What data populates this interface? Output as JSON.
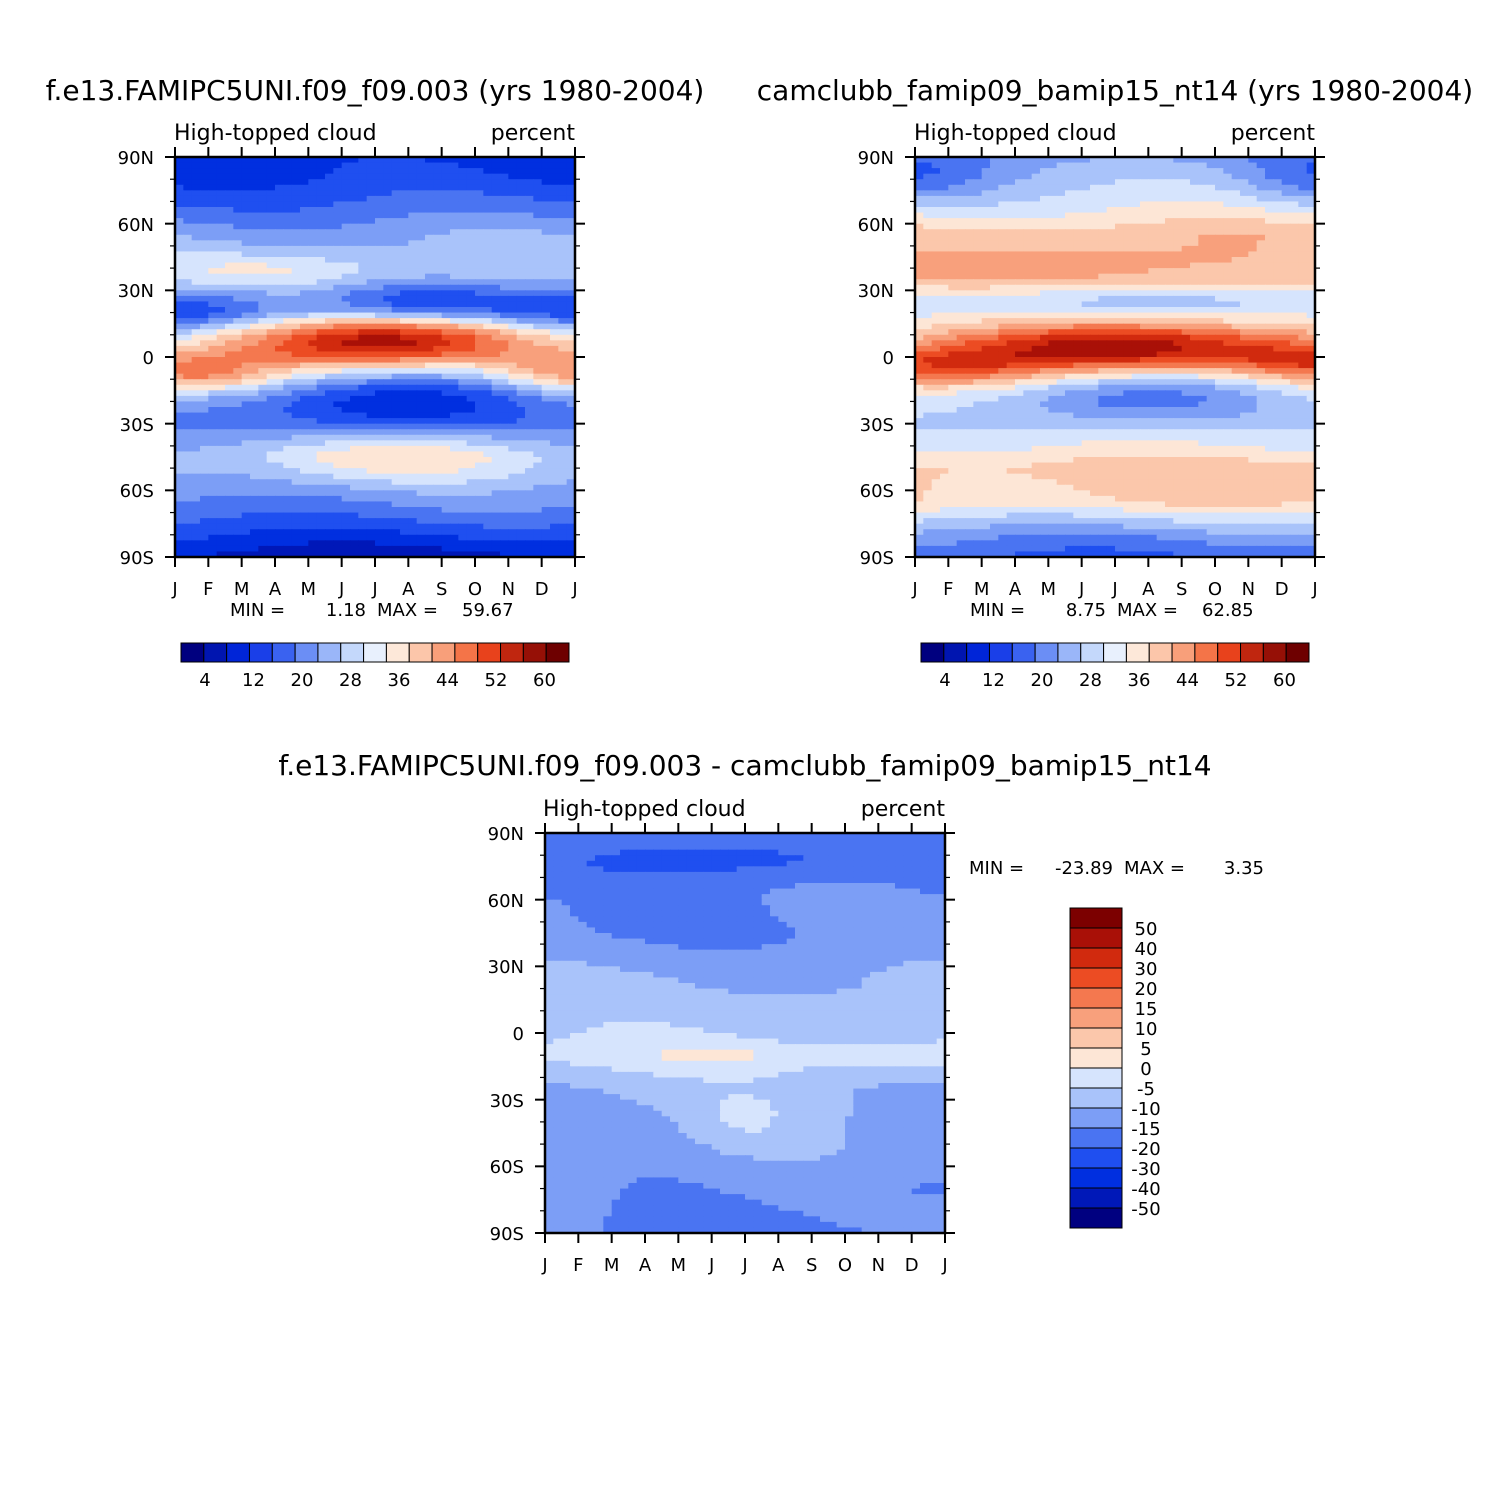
{
  "chart_data": [
    {
      "type": "heatmap",
      "title": "f.e13.FAMIPC5UNI.f09_f09.003 (yrs 1980-2004)",
      "subtitle_left": "High-topped cloud",
      "subtitle_right": "percent",
      "x_ticks": [
        "J",
        "F",
        "M",
        "A",
        "M",
        "J",
        "J",
        "A",
        "S",
        "O",
        "N",
        "D",
        "J"
      ],
      "y_ticks": [
        "90N",
        "60N",
        "30N",
        "0",
        "30S",
        "60S",
        "90S"
      ],
      "min_label": "MIN =",
      "min_value": "1.18",
      "max_label": "MAX =",
      "max_value": "59.67",
      "colorbar_ticks": [
        "4",
        "12",
        "20",
        "28",
        "36",
        "44",
        "52",
        "60"
      ],
      "zrange": [
        0,
        64
      ],
      "features": [
        {
          "lat": 8,
          "month": 6.5,
          "amp": 28,
          "slat": 8,
          "smon": 3.2
        },
        {
          "lat": -8,
          "month": 0.5,
          "amp": 16,
          "slat": 6,
          "smon": 1.8
        },
        {
          "lat": -8,
          "month": 11.8,
          "amp": 14,
          "slat": 6,
          "smon": 1.6
        },
        {
          "lat": -20,
          "month": 6.5,
          "amp": -17,
          "slat": 10,
          "smon": 3
        },
        {
          "lat": 20,
          "month": 0.5,
          "amp": -12,
          "slat": 8,
          "smon": 2
        },
        {
          "lat": 20,
          "month": 12,
          "amp": -12,
          "slat": 8,
          "smon": 2
        },
        {
          "lat": 25,
          "month": 7.5,
          "amp": -10,
          "slat": 6,
          "smon": 2
        },
        {
          "lat": 38,
          "month": 3,
          "amp": 8,
          "slat": 7,
          "smon": 2.5
        },
        {
          "lat": -45,
          "month": 6.5,
          "amp": 9,
          "slat": 8,
          "smon": 3
        }
      ],
      "base_profile": [
        [
          -90,
          6
        ],
        [
          -80,
          12
        ],
        [
          -70,
          18
        ],
        [
          -55,
          24
        ],
        [
          -45,
          26
        ],
        [
          -30,
          22
        ],
        [
          -15,
          26
        ],
        [
          0,
          34
        ],
        [
          10,
          30
        ],
        [
          20,
          22
        ],
        [
          40,
          26
        ],
        [
          55,
          23
        ],
        [
          70,
          16
        ],
        [
          80,
          12
        ],
        [
          90,
          10
        ]
      ]
    },
    {
      "type": "heatmap",
      "title": "camclubb_famip09_bamip15_nt14 (yrs 1980-2004)",
      "subtitle_left": "High-topped cloud",
      "subtitle_right": "percent",
      "x_ticks": [
        "J",
        "F",
        "M",
        "A",
        "M",
        "J",
        "J",
        "A",
        "S",
        "O",
        "N",
        "D",
        "J"
      ],
      "y_ticks": [
        "90N",
        "60N",
        "30N",
        "0",
        "30S",
        "60S",
        "90S"
      ],
      "min_label": "MIN =",
      "min_value": "8.75",
      "max_label": "MAX =",
      "max_value": "62.85",
      "colorbar_ticks": [
        "4",
        "12",
        "20",
        "28",
        "36",
        "44",
        "52",
        "60"
      ],
      "zrange": [
        0,
        64
      ],
      "features": [
        {
          "lat": 6,
          "month": 6.5,
          "amp": 24,
          "slat": 8,
          "smon": 3.4
        },
        {
          "lat": -5,
          "month": 0.8,
          "amp": 12,
          "slat": 6,
          "smon": 2
        },
        {
          "lat": -3,
          "month": 11.8,
          "amp": 12,
          "slat": 6,
          "smon": 1.6
        },
        {
          "lat": -18,
          "month": 6.5,
          "amp": -16,
          "slat": 9,
          "smon": 3
        },
        {
          "lat": 40,
          "month": 4.5,
          "amp": 7,
          "slat": 8,
          "smon": 3
        },
        {
          "lat": 80,
          "month": 0,
          "amp": -8,
          "slat": 8,
          "smon": 1.5
        },
        {
          "lat": 80,
          "month": 12,
          "amp": -8,
          "slat": 8,
          "smon": 1.5
        }
      ],
      "base_profile": [
        [
          -90,
          16
        ],
        [
          -82,
          20
        ],
        [
          -75,
          26
        ],
        [
          -65,
          36
        ],
        [
          -50,
          38
        ],
        [
          -40,
          32
        ],
        [
          -30,
          30
        ],
        [
          -15,
          34
        ],
        [
          0,
          40
        ],
        [
          15,
          30
        ],
        [
          25,
          26
        ],
        [
          35,
          36
        ],
        [
          55,
          38
        ],
        [
          70,
          30
        ],
        [
          85,
          24
        ],
        [
          90,
          22
        ]
      ]
    },
    {
      "type": "heatmap",
      "title": "f.e13.FAMIPC5UNI.f09_f09.003 - camclubb_famip09_bamip15_nt14",
      "subtitle_left": "High-topped cloud",
      "subtitle_right": "percent",
      "x_ticks": [
        "J",
        "F",
        "M",
        "A",
        "M",
        "J",
        "J",
        "A",
        "S",
        "O",
        "N",
        "D",
        "J"
      ],
      "y_ticks": [
        "90N",
        "60N",
        "30N",
        "0",
        "30S",
        "60S",
        "90S"
      ],
      "min_label": "MIN =",
      "min_value": "-23.89",
      "max_label": "MAX =",
      "max_value": "3.35",
      "colorbar_ticks": [
        "50",
        "40",
        "30",
        "20",
        "15",
        "10",
        "5",
        "0",
        "-5",
        "-10",
        "-15",
        "-20",
        "-30",
        "-40",
        "-50"
      ],
      "features": [
        {
          "lat": 12,
          "month": 7.3,
          "amp": 3,
          "slat": 4,
          "smon": 1.8
        },
        {
          "lat": -10,
          "month": 5,
          "amp": 3.5,
          "slat": 4,
          "smon": 1.2
        },
        {
          "lat": -10,
          "month": 9.5,
          "amp": 3.5,
          "slat": 4,
          "smon": 1.8
        },
        {
          "lat": -40,
          "month": 6,
          "amp": 5,
          "slat": 10,
          "smon": 1.2
        },
        {
          "lat": 80,
          "month": 6.5,
          "amp": -6,
          "slat": 7,
          "smon": 3
        },
        {
          "lat": -70,
          "month": 11,
          "amp": -3,
          "slat": 8,
          "smon": 1.5
        }
      ],
      "base_profile": [
        [
          -90,
          -16
        ],
        [
          -75,
          -14
        ],
        [
          -55,
          -12
        ],
        [
          -40,
          -11
        ],
        [
          -25,
          -9
        ],
        [
          -10,
          -3
        ],
        [
          0,
          -6
        ],
        [
          10,
          -8
        ],
        [
          25,
          -10
        ],
        [
          45,
          -15
        ],
        [
          60,
          -15
        ],
        [
          75,
          -17
        ],
        [
          90,
          -15
        ]
      ]
    }
  ]
}
